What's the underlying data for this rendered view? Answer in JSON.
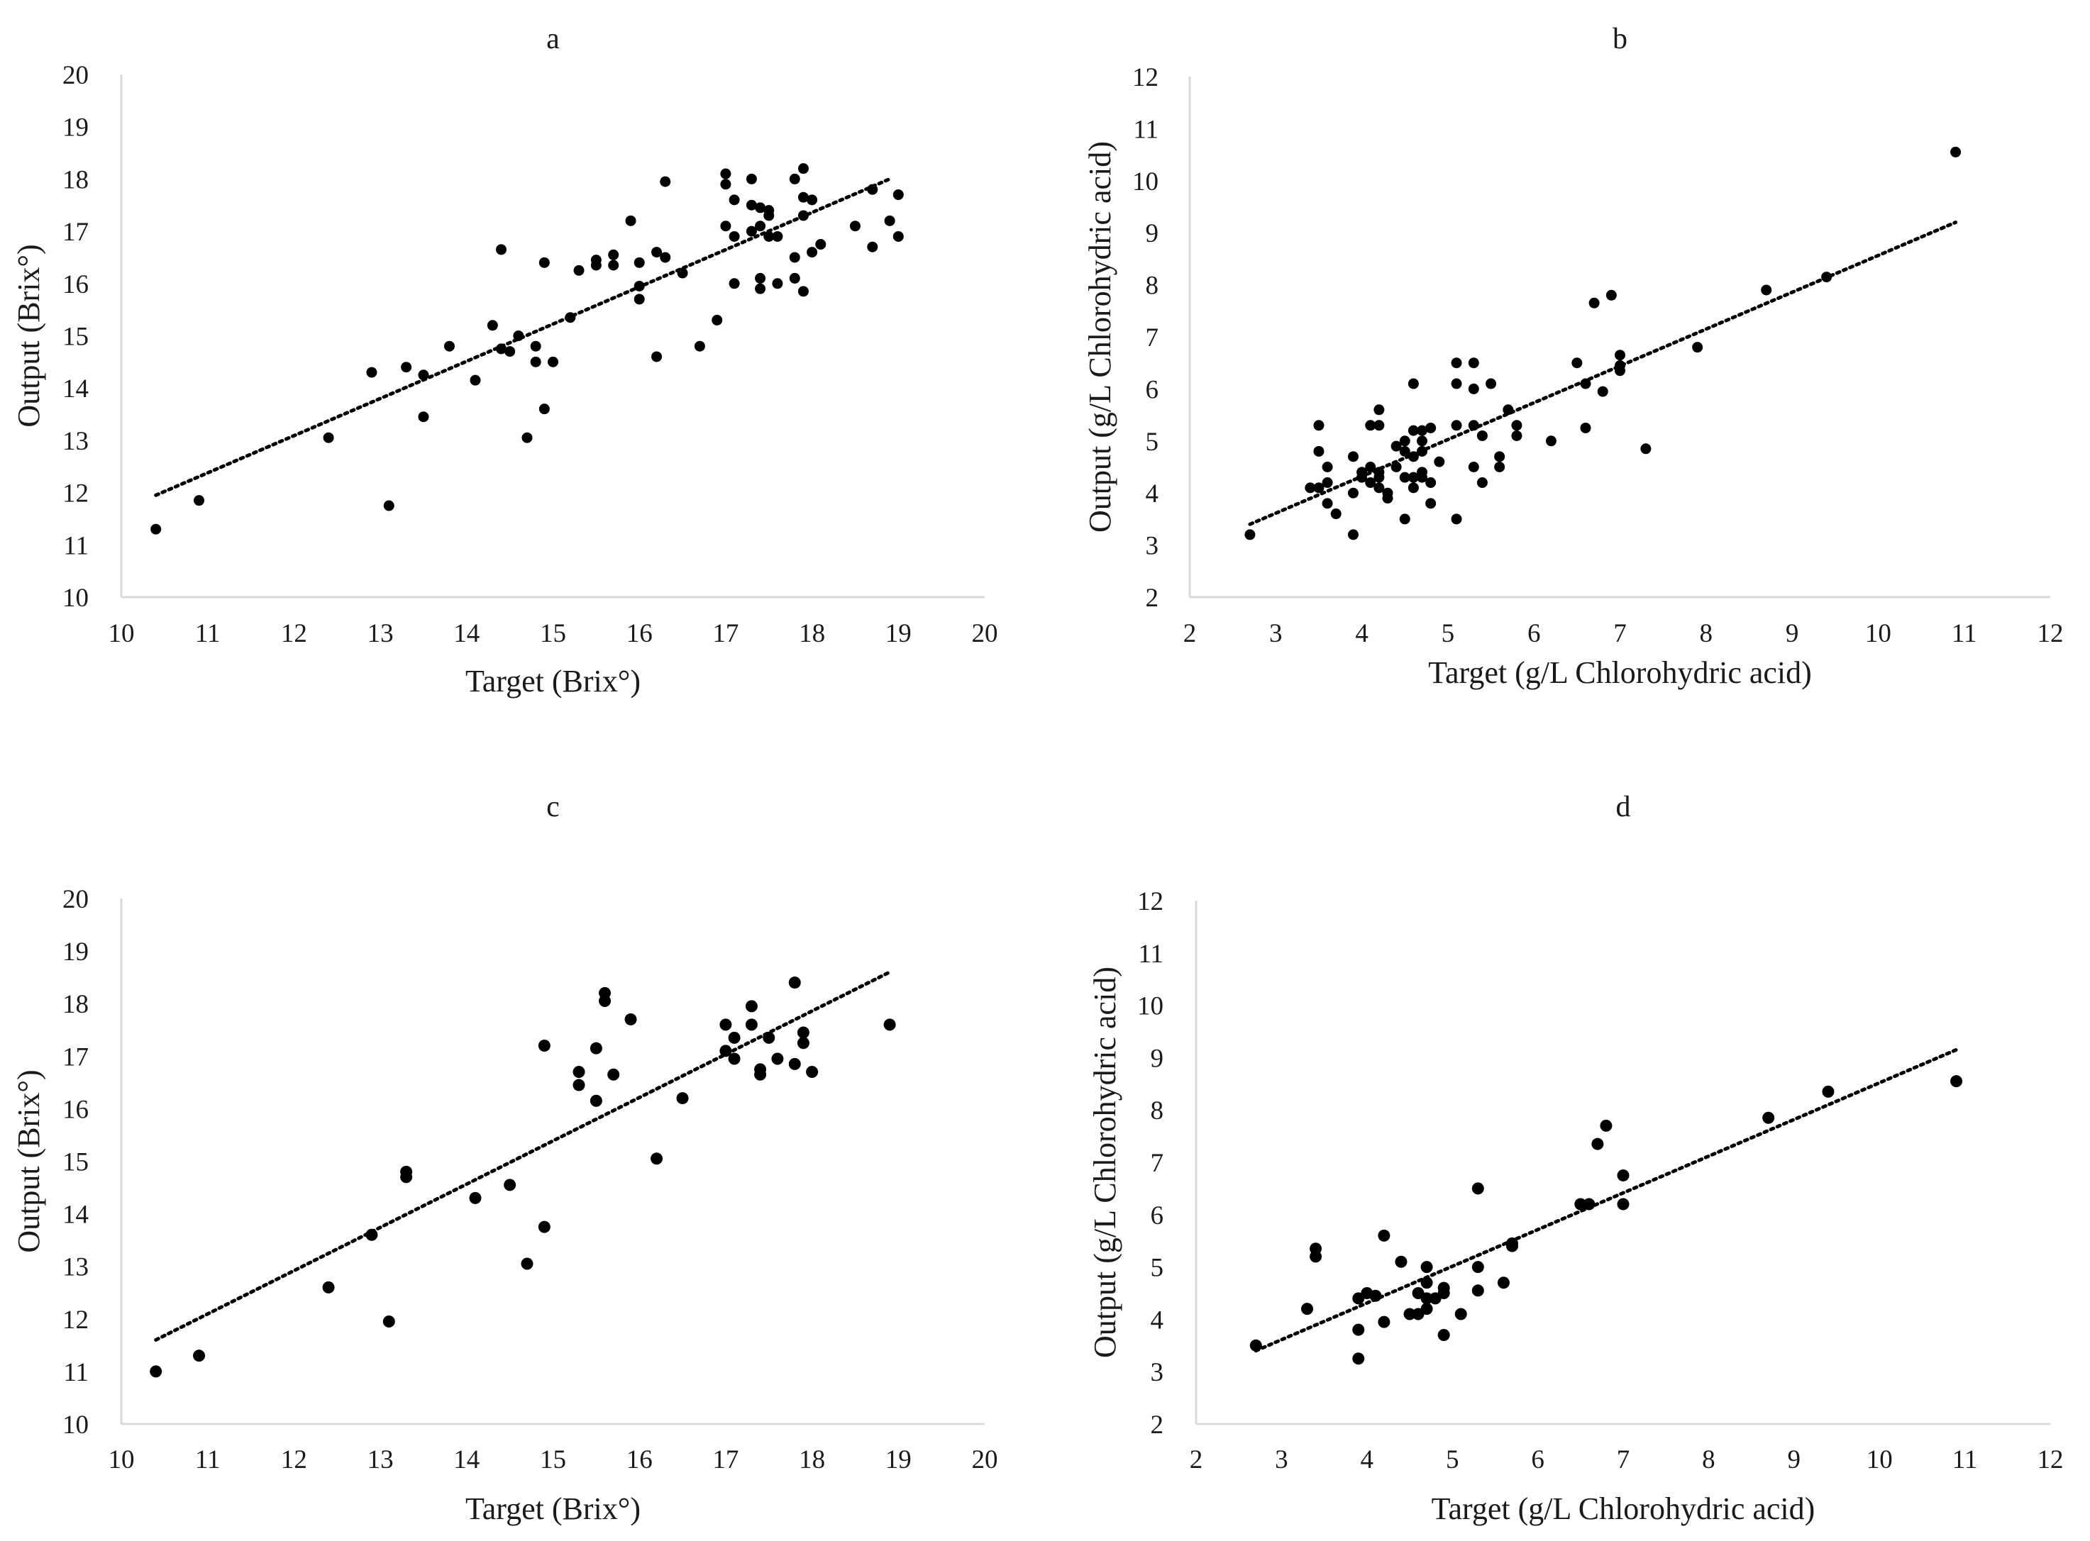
{
  "chart_data": [
    {
      "type": "scatter",
      "title": "a",
      "xlabel": "Target (Brix°)",
      "ylabel": "Output (Brix°)",
      "xlim": [
        10,
        20
      ],
      "ylim": [
        10,
        20
      ],
      "xticks": [
        "10",
        "11",
        "12",
        "13",
        "14",
        "15",
        "16",
        "17",
        "18",
        "19",
        "20"
      ],
      "yticks": [
        "10",
        "11",
        "12",
        "13",
        "14",
        "15",
        "16",
        "17",
        "18",
        "19",
        "20"
      ],
      "grid": false,
      "trendline": {
        "x": [
          10.4,
          18.9
        ],
        "y": [
          11.95,
          18.0
        ]
      },
      "x": [
        10.4,
        10.9,
        12.4,
        12.9,
        13.1,
        13.3,
        13.5,
        13.5,
        13.8,
        14.1,
        14.3,
        14.4,
        14.4,
        14.5,
        14.6,
        14.7,
        14.8,
        14.8,
        14.9,
        14.9,
        15.0,
        15.2,
        15.3,
        15.5,
        15.5,
        15.7,
        15.7,
        15.9,
        16.0,
        16.0,
        16.0,
        16.2,
        16.2,
        16.3,
        16.3,
        16.5,
        16.7,
        16.9,
        17.0,
        17.0,
        17.0,
        17.1,
        17.1,
        17.1,
        17.3,
        17.3,
        17.3,
        17.4,
        17.4,
        17.4,
        17.4,
        17.5,
        17.5,
        17.5,
        17.6,
        17.6,
        17.8,
        17.8,
        17.8,
        17.9,
        17.9,
        17.9,
        17.9,
        18.0,
        18.0,
        18.1,
        18.5,
        18.7,
        18.7,
        18.9,
        19.0,
        19.0
      ],
      "y": [
        11.3,
        11.85,
        13.05,
        14.3,
        11.75,
        14.4,
        14.25,
        13.45,
        14.8,
        14.15,
        15.2,
        16.65,
        14.75,
        14.7,
        15.0,
        13.05,
        14.8,
        14.5,
        16.4,
        13.6,
        14.5,
        15.35,
        16.25,
        16.35,
        16.45,
        16.55,
        16.35,
        17.2,
        16.4,
        15.95,
        15.7,
        16.6,
        14.6,
        17.95,
        16.5,
        16.2,
        14.8,
        15.3,
        18.1,
        17.9,
        17.1,
        17.6,
        16.9,
        16.0,
        18.0,
        17.5,
        17.0,
        17.45,
        17.1,
        16.1,
        15.9,
        17.4,
        17.3,
        16.9,
        16.9,
        16.0,
        18.0,
        16.5,
        16.1,
        18.2,
        17.65,
        17.3,
        15.85,
        17.6,
        16.6,
        16.75,
        17.1,
        17.8,
        16.7,
        17.2,
        17.7,
        16.9
      ]
    },
    {
      "type": "scatter",
      "title": "b",
      "xlabel": "Target (g/L Chlorohydric acid)",
      "ylabel": "Output (g/L Chlorohydric acid)",
      "xlim": [
        2,
        12
      ],
      "ylim": [
        2,
        12
      ],
      "xticks": [
        "2",
        "3",
        "4",
        "5",
        "6",
        "7",
        "8",
        "9",
        "10",
        "11",
        "12"
      ],
      "yticks": [
        "2",
        "3",
        "4",
        "5",
        "6",
        "7",
        "8",
        "9",
        "10",
        "11",
        "12"
      ],
      "grid": false,
      "trendline": {
        "x": [
          2.7,
          10.9
        ],
        "y": [
          3.4,
          9.2
        ]
      },
      "x": [
        2.7,
        3.4,
        3.5,
        3.5,
        3.5,
        3.6,
        3.6,
        3.6,
        3.7,
        3.9,
        3.9,
        3.9,
        4.0,
        4.0,
        4.1,
        4.1,
        4.1,
        4.2,
        4.2,
        4.2,
        4.2,
        4.2,
        4.3,
        4.3,
        4.4,
        4.4,
        4.5,
        4.5,
        4.5,
        4.5,
        4.6,
        4.6,
        4.6,
        4.6,
        4.6,
        4.7,
        4.7,
        4.7,
        4.7,
        4.7,
        4.8,
        4.8,
        4.8,
        4.9,
        5.1,
        5.1,
        5.1,
        5.1,
        5.3,
        5.3,
        5.3,
        5.3,
        5.4,
        5.4,
        5.5,
        5.6,
        5.6,
        5.7,
        5.8,
        5.8,
        6.2,
        6.5,
        6.6,
        6.6,
        6.7,
        6.8,
        6.9,
        7.0,
        7.0,
        7.0,
        7.3,
        7.9,
        8.7,
        9.4,
        10.9
      ],
      "y": [
        3.2,
        4.1,
        4.8,
        5.3,
        4.1,
        4.5,
        3.8,
        4.2,
        3.6,
        4.7,
        4.0,
        3.2,
        4.3,
        4.4,
        4.5,
        4.2,
        5.3,
        5.6,
        5.3,
        4.4,
        4.3,
        4.1,
        4.0,
        3.9,
        4.9,
        4.5,
        5.0,
        4.8,
        4.3,
        3.5,
        6.1,
        5.2,
        4.7,
        4.3,
        4.1,
        5.2,
        5.0,
        4.8,
        4.4,
        4.3,
        5.25,
        4.2,
        3.8,
        4.6,
        6.5,
        6.1,
        5.3,
        3.5,
        6.5,
        6.0,
        5.3,
        4.5,
        5.1,
        4.2,
        6.1,
        4.7,
        4.5,
        5.6,
        5.3,
        5.1,
        5.0,
        6.5,
        6.1,
        5.25,
        7.65,
        5.95,
        7.8,
        6.65,
        6.45,
        6.35,
        4.85,
        6.8,
        7.9,
        8.15,
        10.55
      ]
    },
    {
      "type": "scatter",
      "title": "c",
      "xlabel": "Target (Brix°)",
      "ylabel": "Output (Brix°)",
      "xlim": [
        10,
        20
      ],
      "ylim": [
        10,
        20
      ],
      "xticks": [
        "10",
        "11",
        "12",
        "13",
        "14",
        "15",
        "16",
        "17",
        "18",
        "19",
        "20"
      ],
      "yticks": [
        "10",
        "11",
        "12",
        "13",
        "14",
        "15",
        "16",
        "17",
        "18",
        "19",
        "20"
      ],
      "grid": false,
      "trendline": {
        "x": [
          10.4,
          18.9
        ],
        "y": [
          11.6,
          18.6
        ]
      },
      "x": [
        10.4,
        10.9,
        12.4,
        12.9,
        13.1,
        13.3,
        13.3,
        14.1,
        14.5,
        14.7,
        14.9,
        14.9,
        15.3,
        15.3,
        15.5,
        15.5,
        15.6,
        15.6,
        15.7,
        15.9,
        16.2,
        16.5,
        17.0,
        17.0,
        17.1,
        17.1,
        17.3,
        17.3,
        17.4,
        17.4,
        17.5,
        17.6,
        17.8,
        17.8,
        17.9,
        17.9,
        18.0,
        18.9
      ],
      "y": [
        11.0,
        11.3,
        12.6,
        13.6,
        11.95,
        14.8,
        14.7,
        14.3,
        14.55,
        13.05,
        17.2,
        13.75,
        16.7,
        16.45,
        17.15,
        16.15,
        18.2,
        18.05,
        16.65,
        17.7,
        15.05,
        16.2,
        17.6,
        17.1,
        17.35,
        16.95,
        17.95,
        17.6,
        16.75,
        16.65,
        17.35,
        16.95,
        18.4,
        16.85,
        17.45,
        17.25,
        16.7,
        17.6
      ]
    },
    {
      "type": "scatter",
      "title": "d",
      "xlabel": "Target (g/L Chlorohydric acid)",
      "ylabel": "Output (g/L Chlorohydric acid)",
      "xlim": [
        2,
        12
      ],
      "ylim": [
        2,
        12
      ],
      "xticks": [
        "2",
        "3",
        "4",
        "5",
        "6",
        "7",
        "8",
        "9",
        "10",
        "11",
        "12"
      ],
      "yticks": [
        "2",
        "3",
        "4",
        "5",
        "6",
        "7",
        "8",
        "9",
        "10",
        "11",
        "12"
      ],
      "grid": false,
      "trendline": {
        "x": [
          2.7,
          10.9
        ],
        "y": [
          3.4,
          9.15
        ]
      },
      "x": [
        2.7,
        3.3,
        3.4,
        3.4,
        3.9,
        3.9,
        3.9,
        4.0,
        4.1,
        4.2,
        4.2,
        4.4,
        4.5,
        4.6,
        4.6,
        4.7,
        4.7,
        4.7,
        4.7,
        4.8,
        4.9,
        4.9,
        4.9,
        5.1,
        5.3,
        5.3,
        5.3,
        5.6,
        5.7,
        5.7,
        6.5,
        6.6,
        6.7,
        6.8,
        7.0,
        7.0,
        8.7,
        9.4,
        10.9
      ],
      "y": [
        3.5,
        4.2,
        5.35,
        5.2,
        4.4,
        3.8,
        3.25,
        4.5,
        4.45,
        5.6,
        3.95,
        5.1,
        4.1,
        4.5,
        4.1,
        5.0,
        4.7,
        4.4,
        4.2,
        4.4,
        4.6,
        4.5,
        3.7,
        4.1,
        6.5,
        5.0,
        4.55,
        4.7,
        5.45,
        5.4,
        6.2,
        6.2,
        7.35,
        7.7,
        6.75,
        6.2,
        7.85,
        8.35,
        8.55
      ]
    }
  ]
}
